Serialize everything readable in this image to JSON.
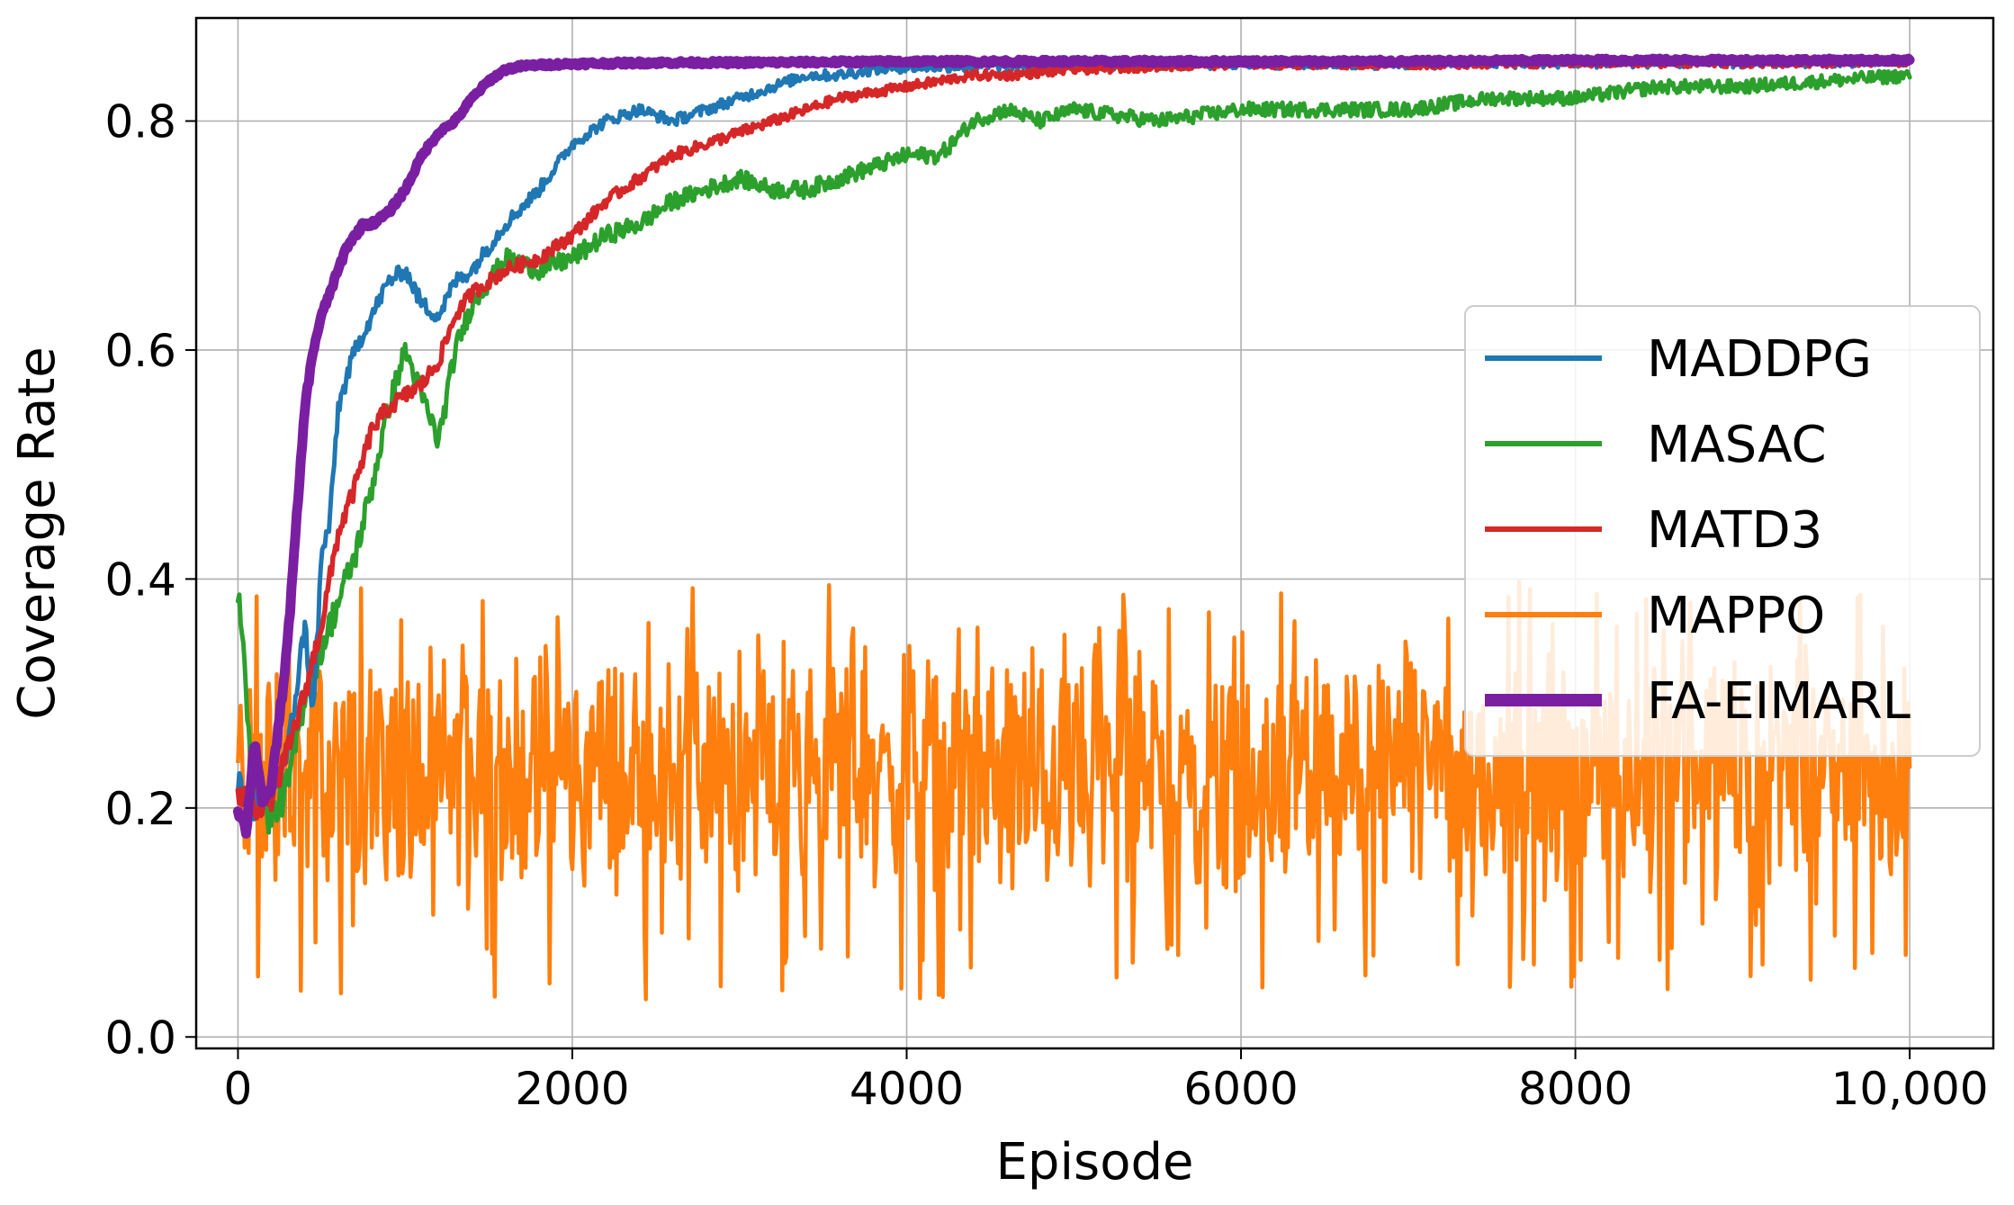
{
  "chart_data": {
    "type": "line",
    "title": "",
    "xlabel": "Episode",
    "ylabel": "Coverage Rate",
    "xlim": [
      -250,
      10500
    ],
    "ylim": [
      -0.01,
      0.89
    ],
    "xticks": [
      0,
      2000,
      4000,
      6000,
      8000,
      10000
    ],
    "xtick_labels": [
      "0",
      "2000",
      "4000",
      "6000",
      "8000",
      "10,000"
    ],
    "yticks": [
      0.0,
      0.2,
      0.4,
      0.6,
      0.8
    ],
    "ytick_labels": [
      "0.0",
      "0.2",
      "0.4",
      "0.6",
      "0.8"
    ],
    "grid": true,
    "legend_position": "center-right",
    "series": [
      {
        "name": "MADDPG",
        "color": "#1f77b4",
        "x": [
          0,
          100,
          200,
          300,
          400,
          450,
          500,
          550,
          600,
          700,
          800,
          900,
          1000,
          1100,
          1200,
          1300,
          1400,
          1600,
          1800,
          2000,
          2200,
          2400,
          2600,
          2800,
          3000,
          3200,
          3400,
          3600,
          3800,
          4000,
          4500,
          5000,
          6000,
          7000,
          8000,
          9000,
          10000
        ],
        "y": [
          0.22,
          0.2,
          0.21,
          0.25,
          0.36,
          0.28,
          0.42,
          0.45,
          0.55,
          0.6,
          0.63,
          0.66,
          0.67,
          0.64,
          0.63,
          0.66,
          0.67,
          0.71,
          0.74,
          0.78,
          0.8,
          0.81,
          0.8,
          0.81,
          0.82,
          0.83,
          0.84,
          0.84,
          0.845,
          0.847,
          0.848,
          0.849,
          0.85,
          0.85,
          0.851,
          0.851,
          0.852
        ]
      },
      {
        "name": "MASAC",
        "color": "#2ca02c",
        "x": [
          0,
          50,
          100,
          200,
          300,
          400,
          500,
          600,
          700,
          800,
          900,
          1000,
          1100,
          1200,
          1300,
          1400,
          1500,
          1600,
          1800,
          2000,
          2200,
          2400,
          2600,
          2800,
          3000,
          3200,
          3400,
          3600,
          3800,
          4000,
          4200,
          4400,
          4600,
          4800,
          5000,
          5500,
          6000,
          6500,
          7000,
          7500,
          8000,
          8500,
          9000,
          9500,
          10000
        ],
        "y": [
          0.39,
          0.3,
          0.22,
          0.19,
          0.22,
          0.3,
          0.34,
          0.38,
          0.42,
          0.48,
          0.55,
          0.6,
          0.56,
          0.52,
          0.6,
          0.64,
          0.66,
          0.68,
          0.67,
          0.68,
          0.7,
          0.71,
          0.73,
          0.74,
          0.75,
          0.74,
          0.74,
          0.75,
          0.76,
          0.77,
          0.77,
          0.8,
          0.81,
          0.8,
          0.81,
          0.8,
          0.81,
          0.81,
          0.81,
          0.82,
          0.82,
          0.83,
          0.83,
          0.835,
          0.84
        ]
      },
      {
        "name": "MATD3",
        "color": "#d62728",
        "x": [
          0,
          100,
          200,
          300,
          400,
          500,
          600,
          700,
          800,
          900,
          1000,
          1100,
          1200,
          1300,
          1400,
          1600,
          1800,
          2000,
          2200,
          2400,
          2600,
          2800,
          3000,
          3200,
          3400,
          3600,
          3800,
          4000,
          4200,
          4400,
          4600,
          5000,
          5500,
          6000,
          7000,
          8000,
          9000,
          10000
        ],
        "y": [
          0.21,
          0.2,
          0.21,
          0.25,
          0.3,
          0.36,
          0.44,
          0.48,
          0.53,
          0.55,
          0.56,
          0.57,
          0.59,
          0.63,
          0.65,
          0.67,
          0.68,
          0.7,
          0.73,
          0.75,
          0.77,
          0.78,
          0.79,
          0.8,
          0.81,
          0.82,
          0.825,
          0.83,
          0.835,
          0.84,
          0.84,
          0.845,
          0.848,
          0.85,
          0.85,
          0.851,
          0.851,
          0.852
        ]
      },
      {
        "name": "MAPPO",
        "color": "#ff7f0e",
        "x_range": [
          0,
          10000
        ],
        "mean": 0.23,
        "min": 0.03,
        "max": 0.4
      },
      {
        "name": "FA-EIMARL",
        "color": "#7b1fa2",
        "x": [
          0,
          50,
          100,
          150,
          200,
          250,
          300,
          350,
          400,
          450,
          500,
          550,
          600,
          650,
          700,
          750,
          800,
          900,
          1000,
          1100,
          1200,
          1300,
          1400,
          1500,
          1600,
          1700,
          1800,
          2000,
          2500,
          3000,
          4000,
          5000,
          6000,
          7000,
          8000,
          9000,
          10000
        ],
        "y": [
          0.2,
          0.18,
          0.26,
          0.2,
          0.22,
          0.28,
          0.35,
          0.45,
          0.55,
          0.6,
          0.63,
          0.65,
          0.67,
          0.69,
          0.7,
          0.71,
          0.71,
          0.72,
          0.74,
          0.77,
          0.79,
          0.8,
          0.82,
          0.835,
          0.845,
          0.848,
          0.849,
          0.85,
          0.851,
          0.851,
          0.852,
          0.852,
          0.852,
          0.852,
          0.853,
          0.853,
          0.853
        ]
      }
    ]
  }
}
